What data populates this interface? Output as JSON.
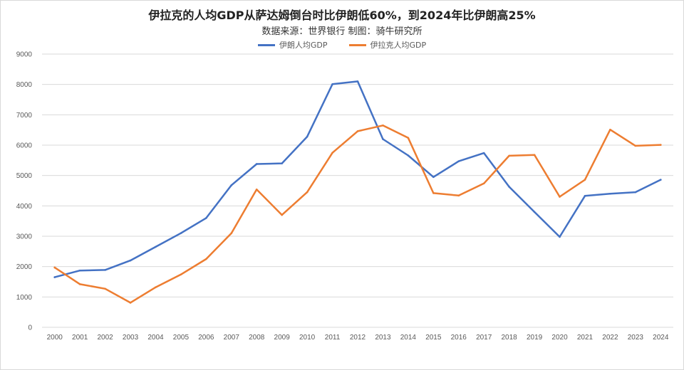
{
  "title": "伊拉克的人均GDP从萨达姆倒台时比伊朗低60%，到2024年比伊朗高25%",
  "subtitle": "数据来源：世界银行     制图：骑牛研究所",
  "colors": {
    "iran": "#4472c4",
    "iraq": "#ed7d31",
    "grid": "#d9d9d9"
  },
  "chart_data": {
    "type": "line",
    "title": "伊拉克的人均GDP从萨达姆倒台时比伊朗低60%，到2024年比伊朗高25%",
    "xlabel": "",
    "ylabel": "",
    "ylim": [
      0,
      9000
    ],
    "yticks": [
      0,
      1000,
      2000,
      3000,
      4000,
      5000,
      6000,
      7000,
      8000,
      9000
    ],
    "grid": true,
    "legend_position": "top",
    "categories": [
      "2000",
      "2001",
      "2002",
      "2003",
      "2004",
      "2005",
      "2006",
      "2007",
      "2008",
      "2009",
      "2010",
      "2011",
      "2012",
      "2013",
      "2014",
      "2015",
      "2016",
      "2017",
      "2018",
      "2019",
      "2020",
      "2021",
      "2022",
      "2023",
      "2024"
    ],
    "series": [
      {
        "name": "伊朗人均GDP",
        "color": "#4472c4",
        "values": [
          1650,
          1870,
          1890,
          2200,
          2650,
          3100,
          3600,
          4680,
          5380,
          5400,
          6280,
          8010,
          8100,
          6200,
          5660,
          4950,
          5470,
          5740,
          4630,
          3800,
          2980,
          4330,
          4400,
          4450,
          4860
        ]
      },
      {
        "name": "伊拉克人均GDP",
        "color": "#ed7d31",
        "values": [
          1970,
          1420,
          1270,
          810,
          1320,
          1740,
          2250,
          3100,
          4540,
          3700,
          4450,
          5750,
          6460,
          6650,
          6240,
          4420,
          4340,
          4740,
          5650,
          5680,
          4300,
          4860,
          6510,
          5980,
          6010
        ]
      }
    ]
  }
}
